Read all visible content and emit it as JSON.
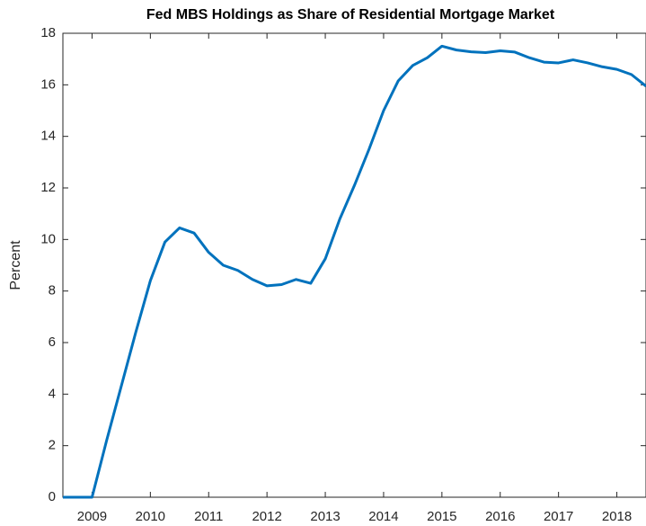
{
  "chart_data": {
    "type": "line",
    "title": "Fed MBS Holdings as Share of Residential Mortgage Market",
    "y_label": "Percent",
    "x": [
      2008.5,
      2008.75,
      2009,
      2009.25,
      2009.5,
      2009.75,
      2010,
      2010.25,
      2010.5,
      2010.75,
      2011,
      2011.25,
      2011.5,
      2011.75,
      2012,
      2012.25,
      2012.5,
      2012.75,
      2013,
      2013.25,
      2013.5,
      2013.75,
      2014,
      2014.25,
      2014.5,
      2014.75,
      2015,
      2015.25,
      2015.5,
      2015.75,
      2016,
      2016.25,
      2016.5,
      2016.75,
      2017,
      2017.25,
      2017.5,
      2017.75,
      2018,
      2018.25,
      2018.5
    ],
    "values": [
      0,
      0,
      0,
      2.2,
      4.3,
      6.4,
      8.4,
      9.9,
      10.45,
      10.25,
      9.5,
      9.0,
      8.8,
      8.45,
      8.2,
      8.25,
      8.45,
      8.3,
      9.25,
      10.8,
      12.1,
      13.5,
      15.0,
      16.15,
      16.75,
      17.05,
      17.5,
      17.35,
      17.28,
      17.25,
      17.32,
      17.27,
      17.05,
      16.88,
      16.85,
      16.97,
      16.85,
      16.7,
      16.6,
      16.4,
      15.95
    ],
    "color": "#0072bd",
    "xlim": [
      2008.5,
      2018.5
    ],
    "xticks": [
      2009,
      2010,
      2011,
      2012,
      2013,
      2014,
      2015,
      2016,
      2017,
      2018
    ],
    "ylim": [
      0,
      18
    ],
    "yticks": [
      0,
      2,
      4,
      6,
      8,
      10,
      12,
      14,
      16,
      18
    ]
  }
}
